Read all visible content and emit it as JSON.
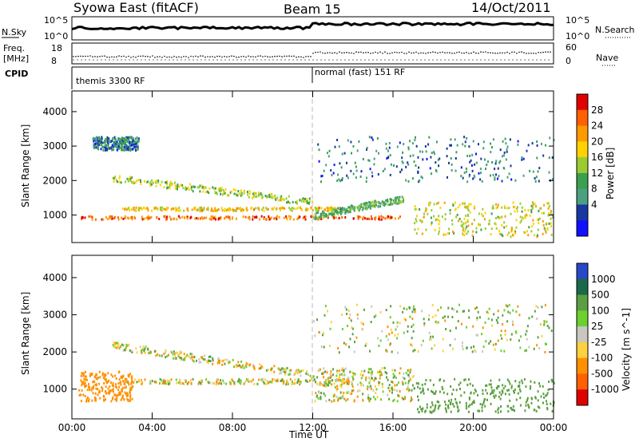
{
  "header": {
    "station": "Syowa East (fitACF)",
    "beam": "Beam 15",
    "date": "14/Oct/2011"
  },
  "panels": {
    "nsky_label": "N.Sky",
    "nsky_ticks": [
      "10^5",
      "10^0"
    ],
    "nsearch_label": "N.Search",
    "nsearch_ticks": [
      "10^5",
      "10^0"
    ],
    "freq_label_1": "Freq.",
    "freq_label_2": "[MHz]",
    "freq_ticks": [
      "18",
      "8"
    ],
    "nave_label": "Nave",
    "nave_ticks": [
      "60",
      "0"
    ],
    "cpid_label": "CPID",
    "cpid_segments": [
      {
        "label": "themis 3300 RF",
        "start_hour": 0
      },
      {
        "label": "normal (fast) 151 RF",
        "start_hour": 12
      }
    ]
  },
  "chart_data": [
    {
      "type": "heatmap",
      "name": "power",
      "xlabel": "Time UT",
      "ylabel": "Slant Range [km]",
      "xlim": [
        0,
        24
      ],
      "ylim": [
        200,
        4600
      ],
      "x_ticks": [
        "00:00",
        "04:00",
        "08:00",
        "12:00",
        "16:00",
        "20:00",
        "00:00"
      ],
      "y_ticks": [
        1000,
        2000,
        3000,
        4000
      ],
      "colorbar": {
        "label": "Power [dB]",
        "ticks": [
          "28",
          "24",
          "20",
          "16",
          "12",
          "8",
          "4"
        ],
        "colors": [
          "#e00000",
          "#ff6000",
          "#ff9a00",
          "#ffd200",
          "#9acc32",
          "#3aa050",
          "#4aa080",
          "#1838a0",
          "#1010ff"
        ]
      },
      "features": [
        {
          "kind": "band",
          "x": [
            0.4,
            16.5
          ],
          "y": [
            900,
            1000
          ],
          "value": 24
        },
        {
          "kind": "band",
          "x": [
            2.5,
            14.0
          ],
          "y": [
            1150,
            1250
          ],
          "value": 18
        },
        {
          "kind": "arc",
          "x": [
            2.0,
            12.0
          ],
          "y_start": 2100,
          "y_end": 1400,
          "value": 14
        },
        {
          "kind": "arc",
          "x": [
            12.0,
            16.5
          ],
          "y_start": 1000,
          "y_end": 1500,
          "value": 10
        },
        {
          "kind": "scatter",
          "x": [
            1.0,
            3.3
          ],
          "y": [
            2900,
            3300
          ],
          "value": 6
        },
        {
          "kind": "scatter",
          "x": [
            12.0,
            24.0
          ],
          "y": [
            2000,
            3300
          ],
          "value": 6
        },
        {
          "kind": "scatter",
          "x": [
            17.0,
            24.0
          ],
          "y": [
            400,
            1400
          ],
          "value": 16
        }
      ]
    },
    {
      "type": "heatmap",
      "name": "velocity",
      "xlabel": "Time UT",
      "ylabel": "Slant Range [km]",
      "xlim": [
        0,
        24
      ],
      "ylim": [
        200,
        4600
      ],
      "x_ticks": [
        "00:00",
        "04:00",
        "08:00",
        "12:00",
        "16:00",
        "20:00",
        "00:00"
      ],
      "y_ticks": [
        1000,
        2000,
        3000,
        4000
      ],
      "colorbar": {
        "label": "Velocity [m s^-1]",
        "ticks": [
          "1000",
          "500",
          "100",
          "25",
          "-25",
          "-100",
          "-500",
          "-1000"
        ],
        "colors": [
          "#2848c8",
          "#1a6a4a",
          "#5aa040",
          "#6cd030",
          "#c8c8c0",
          "#ffd040",
          "#ff9000",
          "#ff6000",
          "#e00000"
        ]
      },
      "features": [
        {
          "kind": "band",
          "x": [
            2.5,
            14.0
          ],
          "y": [
            1150,
            1300
          ],
          "value": 0
        },
        {
          "kind": "arc",
          "x": [
            2.0,
            12.0
          ],
          "y_start": 2200,
          "y_end": 1400,
          "value": 0
        },
        {
          "kind": "band",
          "x": [
            0.3,
            3.0
          ],
          "y": [
            700,
            1500
          ],
          "value": -300
        },
        {
          "kind": "scatter",
          "x": [
            12.0,
            17.0
          ],
          "y": [
            700,
            1600
          ],
          "value": 0
        },
        {
          "kind": "scatter",
          "x": [
            17.0,
            24.0
          ],
          "y": [
            400,
            1300
          ],
          "value": 300
        },
        {
          "kind": "scatter",
          "x": [
            12.0,
            24.0
          ],
          "y": [
            2000,
            3300
          ],
          "value": 50
        }
      ]
    }
  ]
}
